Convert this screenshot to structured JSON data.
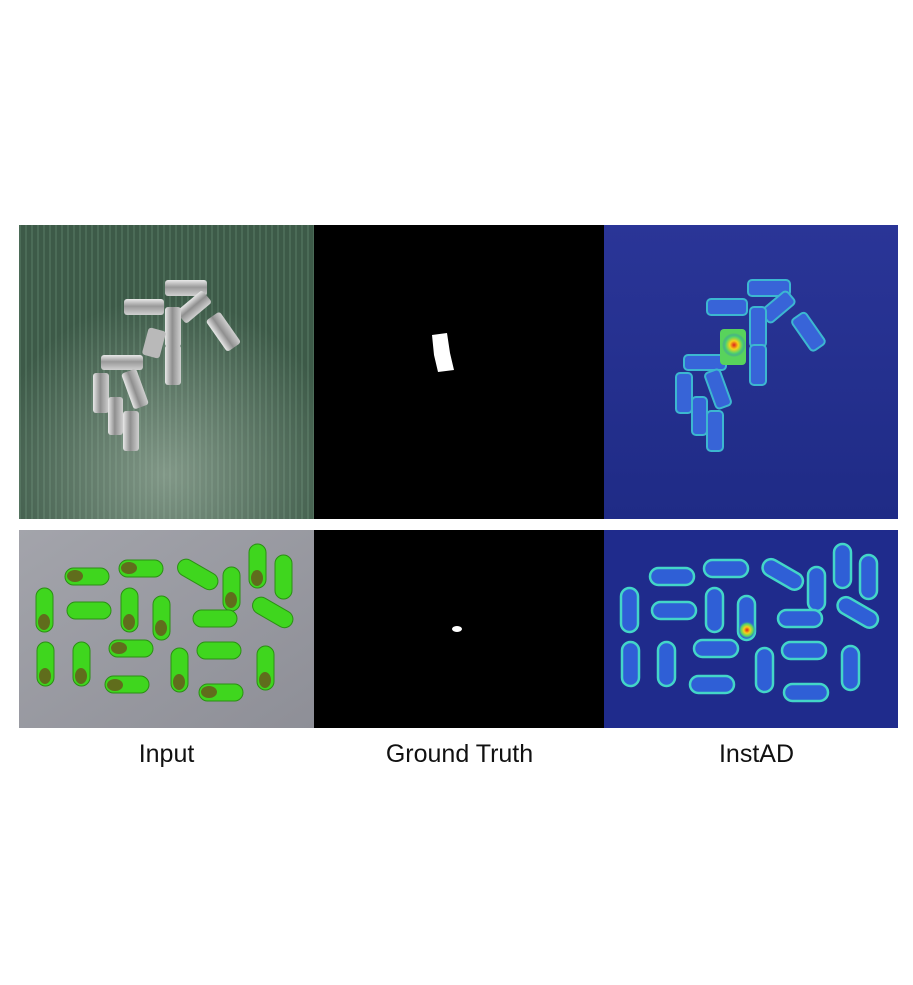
{
  "columns": [
    {
      "label": "Input"
    },
    {
      "label": "Ground Truth"
    },
    {
      "label": "InstAD"
    }
  ],
  "rows": [
    {
      "object": "metal tubes on green cloth"
    },
    {
      "object": "green capsules on grey surface"
    }
  ],
  "colors": {
    "background": "#ffffff",
    "mask_background": "#000000",
    "mask_defect": "#ffffff",
    "heatmap_low": "#1b2a8f",
    "heatmap_high": "#e0201a",
    "cloth": "#3e5c4a",
    "capsule_green": "#3fd61e",
    "capsule_oil": "#6b4a1c"
  }
}
